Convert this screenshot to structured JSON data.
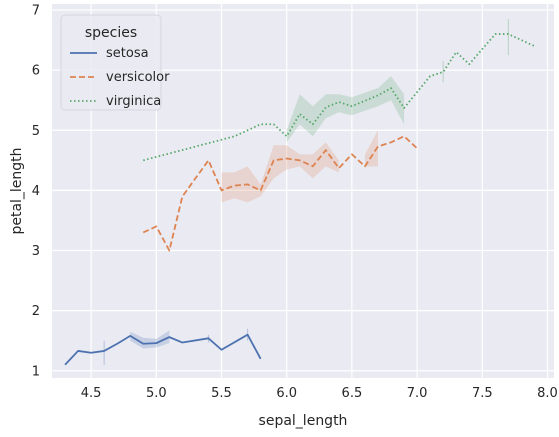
{
  "chart_data": {
    "type": "line",
    "xlabel": "sepal_length",
    "ylabel": "petal_length",
    "xlim": [
      4.2,
      8.05
    ],
    "ylim": [
      0.88,
      7.1
    ],
    "xticks": [
      "4.5",
      "5.0",
      "5.5",
      "6.0",
      "6.5",
      "7.0",
      "7.5",
      "8.0"
    ],
    "yticks": [
      "1",
      "2",
      "3",
      "4",
      "5",
      "6",
      "7"
    ],
    "grid": true,
    "background": "#EAEAF2",
    "legend": {
      "title": "species",
      "placement": "top-left"
    },
    "series": [
      {
        "name": "setosa",
        "color": "#4C72B0",
        "style": "solid",
        "x": [
          4.3,
          4.4,
          4.5,
          4.6,
          4.7,
          4.8,
          4.9,
          5.0,
          5.1,
          5.2,
          5.4,
          5.5,
          5.7,
          5.8
        ],
        "y": [
          1.1,
          1.33,
          1.3,
          1.33,
          1.45,
          1.58,
          1.45,
          1.46,
          1.56,
          1.47,
          1.54,
          1.35,
          1.6,
          1.2
        ],
        "ci_low": [
          null,
          null,
          null,
          1.1,
          null,
          1.5,
          1.37,
          1.39,
          1.46,
          null,
          1.47,
          null,
          1.5,
          null
        ],
        "ci_high": [
          null,
          null,
          null,
          1.5,
          null,
          1.65,
          1.55,
          1.53,
          1.67,
          null,
          1.6,
          null,
          1.7,
          null
        ]
      },
      {
        "name": "versicolor",
        "color": "#DD8452",
        "style": "dashed",
        "x": [
          4.9,
          5.0,
          5.1,
          5.2,
          5.4,
          5.5,
          5.6,
          5.7,
          5.8,
          5.9,
          6.0,
          6.1,
          6.2,
          6.3,
          6.4,
          6.5,
          6.6,
          6.7,
          6.8,
          6.9,
          7.0
        ],
        "y": [
          3.3,
          3.4,
          3.0,
          3.9,
          4.5,
          4.0,
          4.08,
          4.1,
          4.0,
          4.5,
          4.53,
          4.5,
          4.4,
          4.67,
          4.37,
          4.6,
          4.4,
          4.73,
          4.8,
          4.9,
          4.7
        ],
        "ci_low": [
          null,
          null,
          null,
          null,
          null,
          3.8,
          3.87,
          3.8,
          3.9,
          4.2,
          4.35,
          4.4,
          4.2,
          4.4,
          4.3,
          null,
          4.4,
          4.4,
          null,
          null,
          null
        ],
        "ci_high": [
          null,
          null,
          null,
          null,
          null,
          4.3,
          4.3,
          4.4,
          4.1,
          4.75,
          4.75,
          4.6,
          4.6,
          4.8,
          4.5,
          null,
          4.6,
          5.0,
          null,
          null,
          null
        ]
      },
      {
        "name": "virginica",
        "color": "#55A868",
        "style": "dotted",
        "x": [
          4.9,
          5.6,
          5.7,
          5.8,
          5.9,
          6.0,
          6.1,
          6.2,
          6.3,
          6.4,
          6.5,
          6.7,
          6.8,
          6.9,
          7.1,
          7.2,
          7.3,
          7.4,
          7.6,
          7.7,
          7.9
        ],
        "y": [
          4.5,
          4.9,
          5.0,
          5.1,
          5.1,
          4.9,
          5.27,
          5.1,
          5.38,
          5.47,
          5.4,
          5.58,
          5.7,
          5.37,
          5.9,
          5.97,
          6.3,
          6.1,
          6.6,
          6.6,
          6.4
        ],
        "ci_low": [
          null,
          null,
          null,
          5.1,
          null,
          4.8,
          5.1,
          4.9,
          5.2,
          5.3,
          5.25,
          5.4,
          5.5,
          5.1,
          null,
          5.8,
          null,
          null,
          null,
          6.25,
          null
        ],
        "ci_high": [
          null,
          null,
          null,
          5.1,
          null,
          5.0,
          5.6,
          5.4,
          5.6,
          5.6,
          5.55,
          5.7,
          5.9,
          5.6,
          null,
          6.15,
          null,
          null,
          null,
          6.85,
          null
        ]
      }
    ]
  }
}
